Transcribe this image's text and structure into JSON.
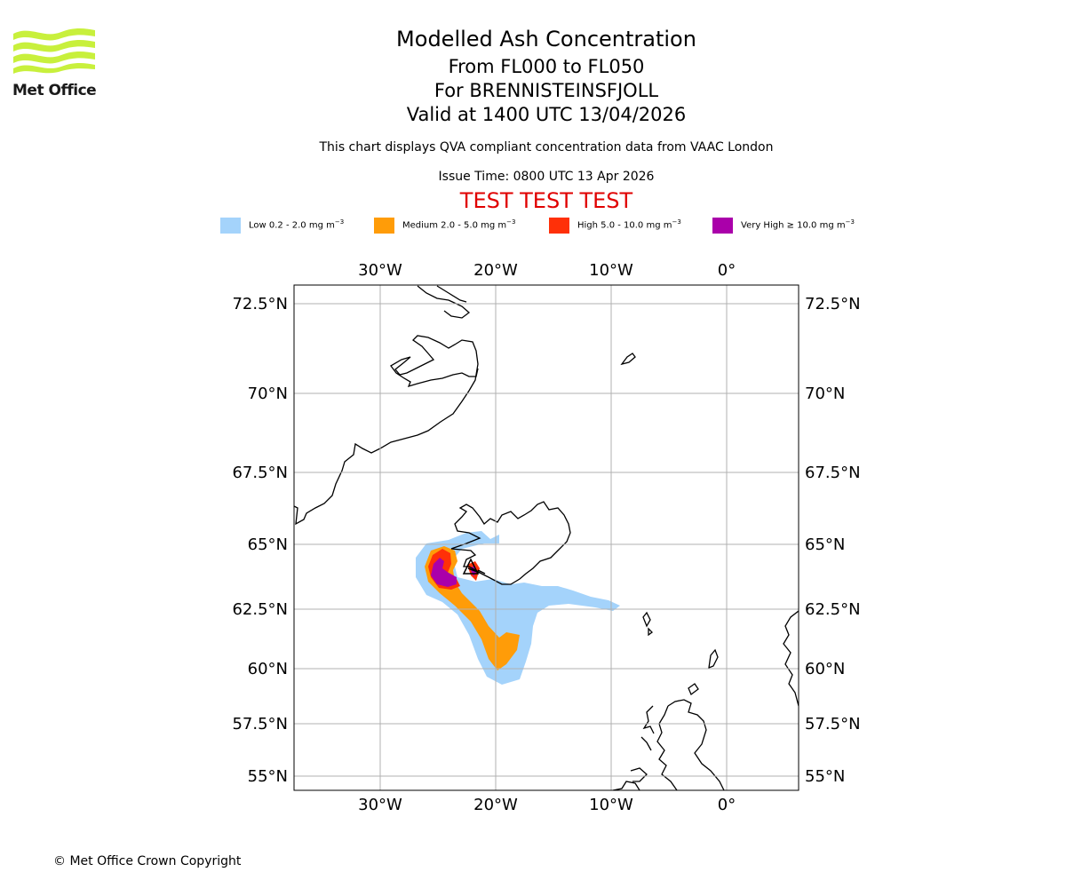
{
  "brand": {
    "name": "Met Office"
  },
  "title": {
    "main": "Modelled Ash Concentration",
    "levels": "From FL000 to FL050",
    "volcano": "For BRENNISTEINSFJOLL",
    "valid": "Valid at 1400 UTC 13/04/2026"
  },
  "description": "This chart displays QVA compliant concentration data from VAAC London",
  "issue_time": "Issue Time: 0800 UTC 13 Apr 2026",
  "test_banner": "TEST TEST TEST",
  "legend": {
    "unit_prefix": "mg m",
    "unit_exp": "−3",
    "items": [
      {
        "label": "Low 0.2 - 2.0",
        "color": "#a4d3fb"
      },
      {
        "label": "Medium 2.0 - 5.0",
        "color": "#ff9c08"
      },
      {
        "label": "High 5.0 - 10.0",
        "color": "#ff3008"
      },
      {
        "label": "Very High  ≥  10.0",
        "color": "#aa00aa"
      }
    ]
  },
  "map": {
    "lon_range": [
      -37.5,
      6.2
    ],
    "lat_range": [
      54.6,
      73.0
    ],
    "lon_ticks": [
      "30°W",
      "20°W",
      "10°W",
      "0°"
    ],
    "lat_ticks": [
      "72.5°N",
      "70°N",
      "67.5°N",
      "65°N",
      "62.5°N",
      "60°N",
      "57.5°N",
      "55°N"
    ],
    "volcano_marker": "triangle"
  },
  "footer": "© Met Office Crown Copyright"
}
